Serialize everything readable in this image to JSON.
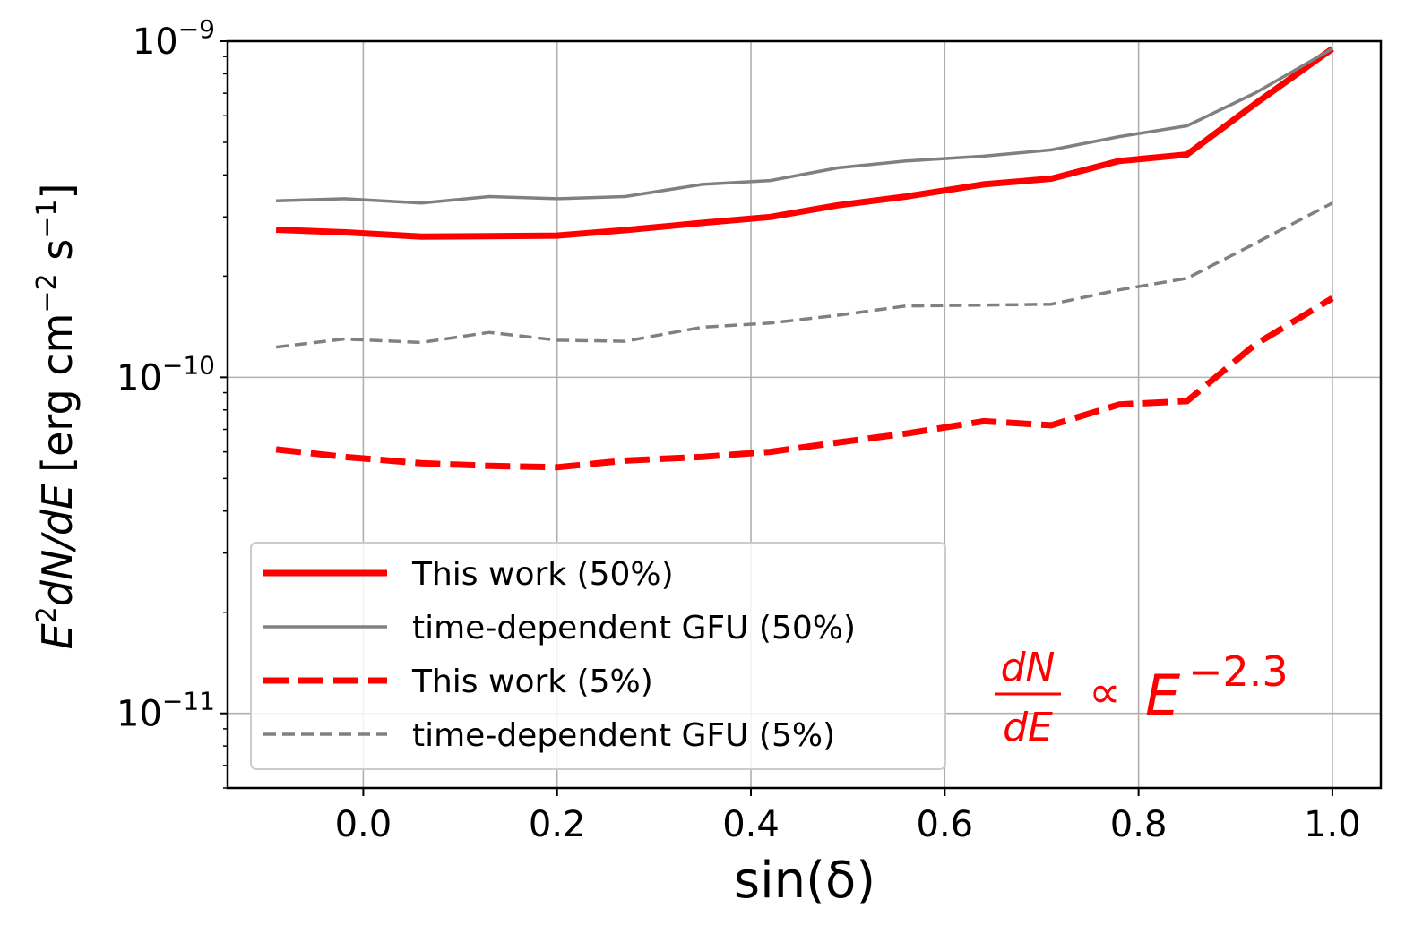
{
  "chart_data": {
    "type": "line",
    "xlabel": "sin(δ)",
    "ylabel": {
      "E": "E",
      "two": "2",
      "dNdE": "dN/dE",
      "unit_open": "[erg cm",
      "unit_exp_cm": "−2",
      "unit_s": " s",
      "unit_exp_s": "−1",
      "unit_close": "]"
    },
    "xlim": [
      -0.14,
      1.05
    ],
    "ylim": [
      6e-12,
      1e-09
    ],
    "yscale": "log",
    "grid": true,
    "xticks": [
      {
        "value": 0.0,
        "label": "0.0"
      },
      {
        "value": 0.2,
        "label": "0.2"
      },
      {
        "value": 0.4,
        "label": "0.4"
      },
      {
        "value": 0.6,
        "label": "0.6"
      },
      {
        "value": 0.8,
        "label": "0.8"
      },
      {
        "value": 1.0,
        "label": "1.0"
      }
    ],
    "yticks": [
      {
        "value": 1e-09,
        "base": "10",
        "exp": "−9"
      },
      {
        "value": 1e-10,
        "base": "10",
        "exp": "−10"
      },
      {
        "value": 1e-11,
        "base": "10",
        "exp": "−11"
      }
    ],
    "x": [
      -0.09,
      -0.02,
      0.06,
      0.13,
      0.2,
      0.27,
      0.35,
      0.42,
      0.49,
      0.56,
      0.64,
      0.71,
      0.78,
      0.85,
      0.92,
      1.0
    ],
    "series": [
      {
        "name": "This work (50%)",
        "color": "#ff0000",
        "style": "solid",
        "width": 7,
        "values": [
          2.75e-10,
          2.7e-10,
          2.62e-10,
          2.63e-10,
          2.64e-10,
          2.74e-10,
          2.88e-10,
          3e-10,
          3.25e-10,
          3.45e-10,
          3.75e-10,
          3.9e-10,
          4.4e-10,
          4.6e-10,
          6.5e-10,
          9.5e-10
        ]
      },
      {
        "name": "time-dependent GFU  (50%)",
        "color": "#808080",
        "style": "solid",
        "width": 3.5,
        "values": [
          3.35e-10,
          3.4e-10,
          3.3e-10,
          3.45e-10,
          3.4e-10,
          3.45e-10,
          3.75e-10,
          3.85e-10,
          4.2e-10,
          4.4e-10,
          4.55e-10,
          4.75e-10,
          5.2e-10,
          5.6e-10,
          7e-10,
          9.5e-10
        ]
      },
      {
        "name": "This work (5%)",
        "color": "#ff0000",
        "style": "dashed",
        "width": 7,
        "values": [
          6.1e-11,
          5.8e-11,
          5.55e-11,
          5.45e-11,
          5.4e-11,
          5.65e-11,
          5.8e-11,
          6e-11,
          6.4e-11,
          6.8e-11,
          7.4e-11,
          7.2e-11,
          8.3e-11,
          8.5e-11,
          1.25e-10,
          1.72e-10
        ]
      },
      {
        "name": "time-dependent GFU  (5%)",
        "color": "#808080",
        "style": "dashed",
        "width": 3.5,
        "values": [
          1.23e-10,
          1.3e-10,
          1.27e-10,
          1.36e-10,
          1.29e-10,
          1.28e-10,
          1.41e-10,
          1.45e-10,
          1.53e-10,
          1.63e-10,
          1.64e-10,
          1.65e-10,
          1.82e-10,
          1.97e-10,
          2.5e-10,
          3.3e-10
        ]
      }
    ],
    "legend_position": "lower-left",
    "annotation": {
      "numerator": "dN",
      "denominator": "dE",
      "proportional": "∝",
      "base": "E",
      "exponent": "−2.3",
      "color": "#ff0000"
    }
  }
}
